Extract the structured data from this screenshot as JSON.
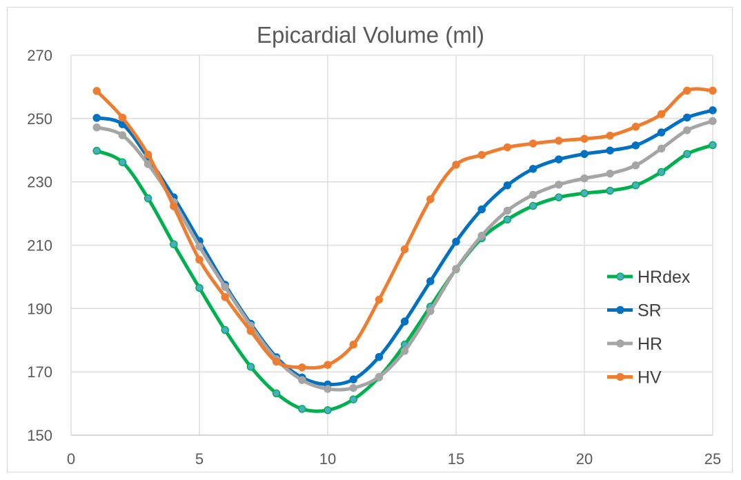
{
  "chart_data": {
    "type": "line",
    "title": "Epicardial Volume (ml)",
    "xlabel": "",
    "ylabel": "",
    "xlim": [
      0,
      25
    ],
    "ylim": [
      150,
      270
    ],
    "x_ticks": [
      "0",
      "5",
      "10",
      "15",
      "20",
      "25"
    ],
    "y_ticks": [
      "150",
      "170",
      "190",
      "210",
      "230",
      "250",
      "270"
    ],
    "grid": true,
    "legend_position": "right",
    "x": [
      1,
      2,
      3,
      4,
      5,
      6,
      7,
      8,
      9,
      10,
      11,
      12,
      13,
      14,
      15,
      16,
      17,
      18,
      19,
      20,
      21,
      22,
      23,
      24,
      25
    ],
    "series": [
      {
        "name": "HRdex",
        "color": "#00b050",
        "marker_color": "#4bacc6",
        "values": [
          239.8,
          236.2,
          224.8,
          210.3,
          196.5,
          183.2,
          171.6,
          163.2,
          158.3,
          157.9,
          161.3,
          168.3,
          178.6,
          190.6,
          202.4,
          212.2,
          218.1,
          222.4,
          225.1,
          226.4,
          227.2,
          228.9,
          233.1,
          238.8,
          241.6
        ]
      },
      {
        "name": "SR",
        "color": "#0070c0",
        "marker_color": "#0070c0",
        "values": [
          250.2,
          248.2,
          237.6,
          225.1,
          211.3,
          197.5,
          185.2,
          174.6,
          168.2,
          166.0,
          167.6,
          174.7,
          185.9,
          198.6,
          211.1,
          221.3,
          228.9,
          234.1,
          237.1,
          238.8,
          239.9,
          241.5,
          245.6,
          250.3,
          252.6
        ]
      },
      {
        "name": "HR",
        "color": "#a5a5a5",
        "marker_color": "#a5a5a5",
        "values": [
          247.2,
          244.7,
          235.6,
          223.6,
          209.6,
          196.8,
          184.6,
          174.0,
          167.4,
          164.6,
          164.9,
          168.4,
          176.6,
          189.2,
          202.5,
          213.0,
          220.9,
          225.9,
          229.1,
          231.1,
          232.6,
          235.2,
          240.5,
          246.3,
          249.2
        ]
      },
      {
        "name": "HV",
        "color": "#ed7d31",
        "marker_color": "#ed7d31",
        "values": [
          258.7,
          250.3,
          238.6,
          222.3,
          205.4,
          193.6,
          182.9,
          173.2,
          171.4,
          172.2,
          178.6,
          192.8,
          208.7,
          224.5,
          235.4,
          238.5,
          240.9,
          242.1,
          243.0,
          243.6,
          244.6,
          247.4,
          251.4,
          258.8,
          258.8
        ]
      }
    ]
  }
}
